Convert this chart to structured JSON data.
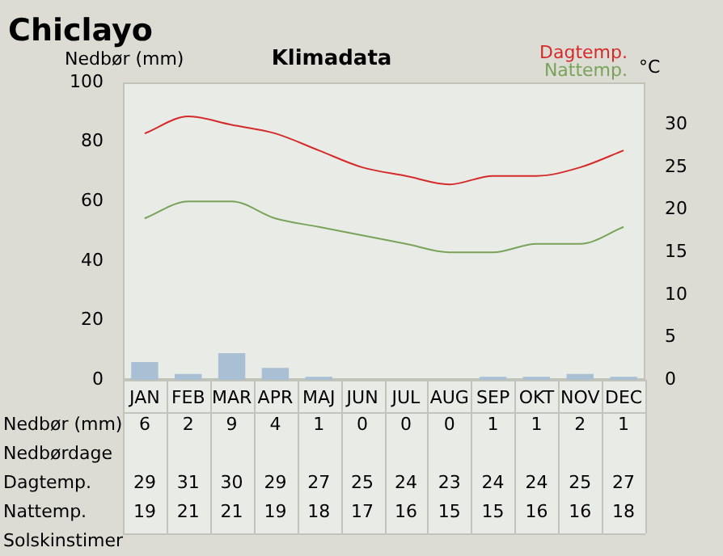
{
  "chart_data": {
    "type": "bar",
    "title": "Chiclayo",
    "subtitle": "Klimadata",
    "ylabel": "Nedbør (mm)",
    "y2label": "°C",
    "categories": [
      "JAN",
      "FEB",
      "MAR",
      "APR",
      "MAJ",
      "JUN",
      "JUL",
      "AUG",
      "SEP",
      "OKT",
      "NOV",
      "DEC"
    ],
    "series": [
      {
        "color": "#a8bfd4",
        "values": [
          6,
          2,
          9,
          4,
          1,
          0,
          0,
          0,
          1,
          1,
          2,
          1
        ]
      },
      {
        "name": "Dagtemp.",
        "type": "line",
        "axis": "y2",
        "color": "#d62a2a",
        "values": [
          29,
          31,
          30,
          29,
          27,
          25,
          24,
          23,
          24,
          24,
          25,
          27
        ]
      },
      {
        "name": "Nattemp.",
        "type": "line",
        "axis": "y2",
        "color": "#7aa35a",
        "values": [
          19,
          21,
          21,
          19,
          18,
          17,
          16,
          15,
          15,
          16,
          16,
          18
        ]
      }
    ],
    "ylim": [
      0,
      100
    ],
    "yticks": [
      0,
      20,
      40,
      60,
      80,
      100
    ],
    "y2lim": [
      0,
      35
    ],
    "y2ticks": [
      0,
      5,
      10,
      15,
      20,
      25,
      30
    ],
    "annotations": [
      "Nedbør (mm)",
      "Nedbørdage",
      "Dagtemp.",
      "Nattemp.",
      "Solskinstimer"
    ],
    "data_labels": true,
    "legend": "top right",
    "marker": "none",
    "grid": false
  }
}
